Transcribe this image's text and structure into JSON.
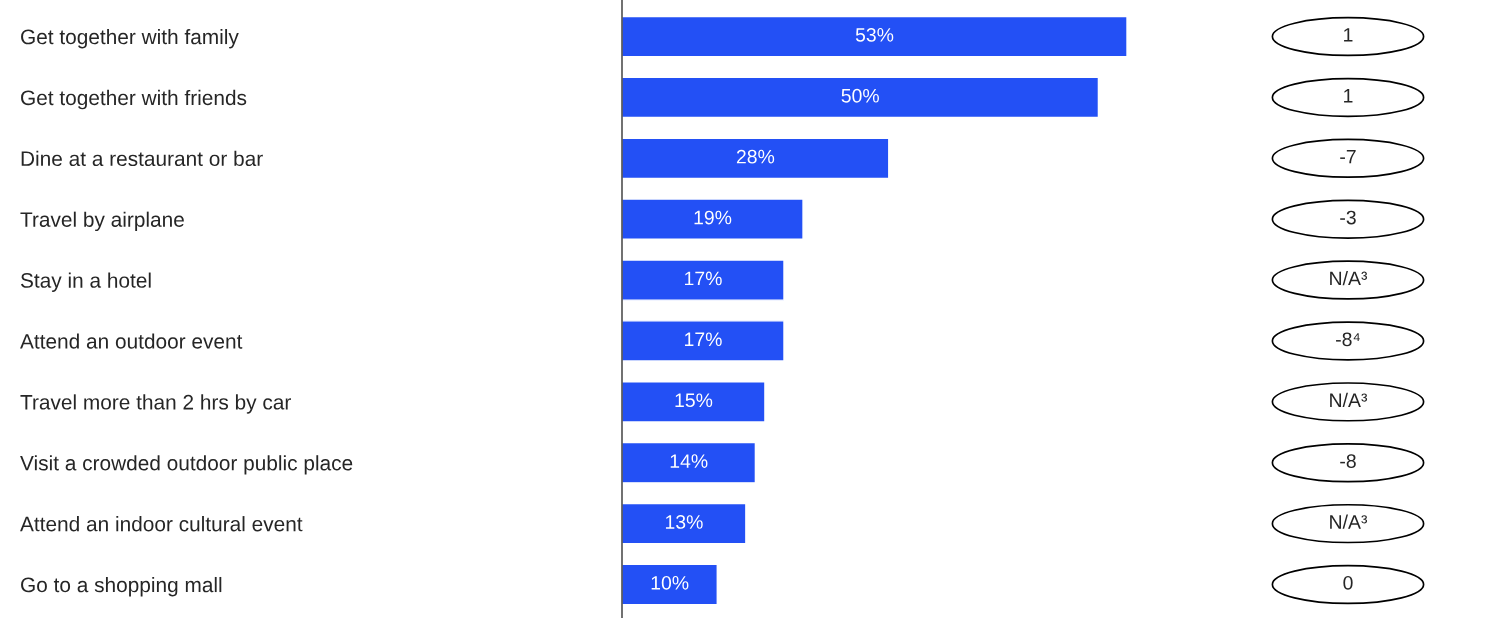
{
  "chart_data": {
    "type": "bar",
    "orientation": "horizontal",
    "categories": [
      "Get together with family",
      "Get together with friends",
      "Dine at a restaurant or bar",
      "Travel by airplane",
      "Stay in a hotel",
      "Attend an outdoor event",
      "Travel more than 2 hrs by car",
      "Visit a crowded outdoor public place",
      "Attend an indoor cultural event",
      "Go to a shopping mall"
    ],
    "values": [
      53,
      50,
      28,
      19,
      17,
      17,
      15,
      14,
      13,
      10
    ],
    "value_labels": [
      "53%",
      "50%",
      "28%",
      "19%",
      "17%",
      "17%",
      "15%",
      "14%",
      "13%",
      "10%"
    ],
    "color": "#2350f5",
    "annotations": [
      "1",
      "1",
      "-7",
      "-3",
      "N/A³",
      "-8⁴",
      "N/A³",
      "-8",
      "N/A³",
      "0"
    ]
  }
}
